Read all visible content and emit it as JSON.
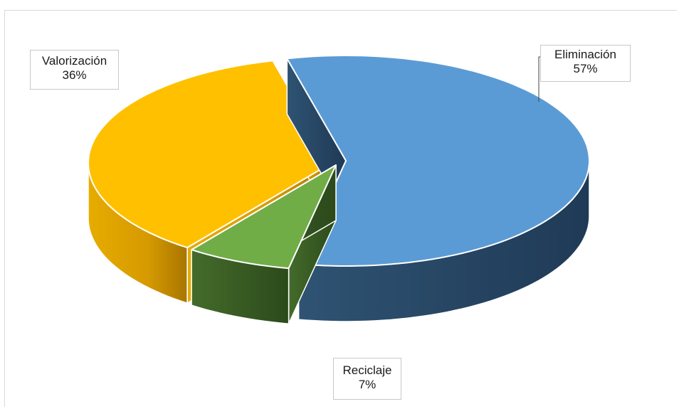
{
  "chart_data": {
    "type": "pie",
    "subtype": "3d-exploded",
    "series": [
      {
        "values": [
          57,
          7,
          36
        ],
        "labels": [
          "Eliminación",
          "Reciclaje",
          "Valorización"
        ],
        "data_labels": [
          "57%",
          "7%",
          "36%"
        ],
        "colors": [
          "#5b9bd5",
          "#70ad47",
          "#ffc000"
        ]
      }
    ],
    "legend": "none",
    "data_label_position": "outside"
  }
}
